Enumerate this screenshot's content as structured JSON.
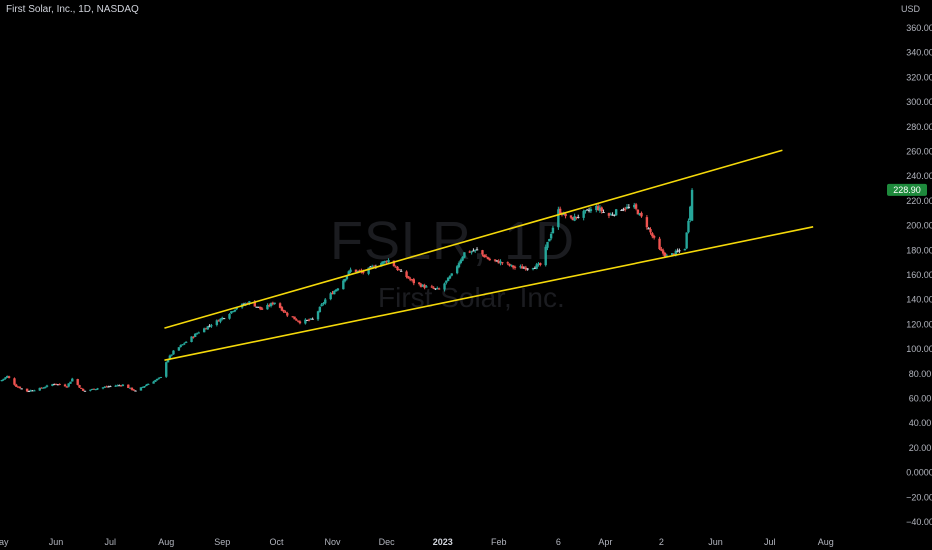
{
  "header": {
    "title": "First Solar, Inc., 1D, NASDAQ",
    "currency": "USD"
  },
  "watermark": {
    "symbol": "FSLR, 1D",
    "name": "First Solar, Inc."
  },
  "price_label": {
    "value": "228.90",
    "color": "#1e8a3c"
  },
  "colors": {
    "up": "#26a69a",
    "down": "#ef5350",
    "neutral": "#d1d4dc",
    "trendline": "#f5d90a",
    "background": "#000000"
  },
  "chart_data": {
    "type": "candlestick",
    "y_axis": {
      "range": [
        -40,
        360
      ],
      "ticks": [
        -40,
        -20,
        0,
        20,
        40,
        60,
        80,
        100,
        120,
        140,
        160,
        180,
        200,
        220,
        240,
        260,
        280,
        300,
        320,
        340,
        360
      ],
      "tick_labels": [
        "−40.00",
        "−20.00",
        "0.0000",
        "20.00",
        "40.00",
        "60.00",
        "80.00",
        "100.00",
        "120.00",
        "140.00",
        "160.00",
        "180.00",
        "200.00",
        "220.00",
        "240.00",
        "260.00",
        "280.00",
        "300.00",
        "320.00",
        "340.00",
        "360.00"
      ]
    },
    "x_axis": {
      "range": [
        "2022-05-01",
        "2023-08-31"
      ],
      "ticks": [
        {
          "label": "May",
          "date": "2022-05-01"
        },
        {
          "label": "Jun",
          "date": "2022-06-01"
        },
        {
          "label": "Jul",
          "date": "2022-07-01"
        },
        {
          "label": "Aug",
          "date": "2022-08-01"
        },
        {
          "label": "Sep",
          "date": "2022-09-01"
        },
        {
          "label": "Oct",
          "date": "2022-10-01"
        },
        {
          "label": "Nov",
          "date": "2022-11-01"
        },
        {
          "label": "Dec",
          "date": "2022-12-01"
        },
        {
          "label": "2023",
          "date": "2023-01-01",
          "bold": true
        },
        {
          "label": "Feb",
          "date": "2023-02-01"
        },
        {
          "label": "6",
          "date": "2023-03-06"
        },
        {
          "label": "Apr",
          "date": "2023-04-01"
        },
        {
          "label": "2",
          "date": "2023-05-02"
        },
        {
          "label": "Jun",
          "date": "2023-06-01"
        },
        {
          "label": "Jul",
          "date": "2023-07-01"
        },
        {
          "label": "Aug",
          "date": "2023-08-01"
        }
      ]
    },
    "price_path": [
      [
        "2022-05-01",
        74
      ],
      [
        "2022-05-05",
        78
      ],
      [
        "2022-05-10",
        70
      ],
      [
        "2022-05-16",
        66
      ],
      [
        "2022-05-23",
        68
      ],
      [
        "2022-05-31",
        72
      ],
      [
        "2022-06-07",
        70
      ],
      [
        "2022-06-10",
        76
      ],
      [
        "2022-06-16",
        66
      ],
      [
        "2022-06-23",
        68
      ],
      [
        "2022-07-01",
        70
      ],
      [
        "2022-07-08",
        71
      ],
      [
        "2022-07-15",
        66
      ],
      [
        "2022-07-22",
        72
      ],
      [
        "2022-07-29",
        77
      ],
      [
        "2022-08-01",
        90
      ],
      [
        "2022-08-05",
        98
      ],
      [
        "2022-08-12",
        106
      ],
      [
        "2022-08-19",
        114
      ],
      [
        "2022-08-26",
        120
      ],
      [
        "2022-09-02",
        126
      ],
      [
        "2022-09-09",
        134
      ],
      [
        "2022-09-16",
        138
      ],
      [
        "2022-09-23",
        132
      ],
      [
        "2022-09-30",
        138
      ],
      [
        "2022-10-07",
        128
      ],
      [
        "2022-10-14",
        122
      ],
      [
        "2022-10-21",
        124
      ],
      [
        "2022-10-28",
        140
      ],
      [
        "2022-11-04",
        150
      ],
      [
        "2022-11-11",
        164
      ],
      [
        "2022-11-18",
        162
      ],
      [
        "2022-11-25",
        168
      ],
      [
        "2022-12-02",
        172
      ],
      [
        "2022-12-09",
        162
      ],
      [
        "2022-12-16",
        154
      ],
      [
        "2022-12-23",
        150
      ],
      [
        "2022-12-30",
        148
      ],
      [
        "2023-01-06",
        160
      ],
      [
        "2023-01-13",
        178
      ],
      [
        "2023-01-20",
        180
      ],
      [
        "2023-01-27",
        172
      ],
      [
        "2023-02-03",
        170
      ],
      [
        "2023-02-10",
        166
      ],
      [
        "2023-02-17",
        166
      ],
      [
        "2023-02-24",
        168
      ],
      [
        "2023-03-01",
        190
      ],
      [
        "2023-03-06",
        212
      ],
      [
        "2023-03-13",
        205
      ],
      [
        "2023-03-20",
        210
      ],
      [
        "2023-03-27",
        215
      ],
      [
        "2023-04-03",
        208
      ],
      [
        "2023-04-10",
        214
      ],
      [
        "2023-04-17",
        215
      ],
      [
        "2023-04-24",
        200
      ],
      [
        "2023-05-01",
        180
      ],
      [
        "2023-05-05",
        175
      ],
      [
        "2023-05-10",
        178
      ],
      [
        "2023-05-15",
        182
      ],
      [
        "2023-05-19",
        228.9
      ]
    ],
    "trendlines": [
      {
        "name": "upper",
        "from": [
          "2022-07-31",
          117
        ],
        "to": [
          "2023-07-08",
          261
        ]
      },
      {
        "name": "lower",
        "from": [
          "2022-07-31",
          91
        ],
        "to": [
          "2023-07-25",
          199
        ]
      }
    ]
  }
}
